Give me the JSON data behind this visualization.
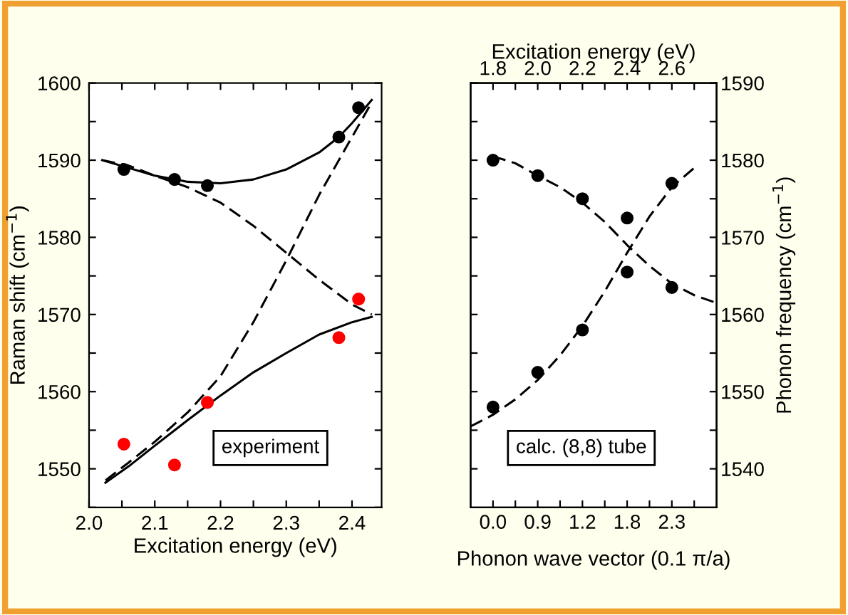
{
  "chart_data": [
    {
      "type": "scatter",
      "xlabel": "Excitation energy (eV)",
      "ylabel": "Raman shift (cm$^{−1}$)",
      "xlim": [
        2.0,
        2.445
      ],
      "ylim": [
        1545,
        1600
      ],
      "xticks": [
        {
          "value": 2.0,
          "label": "2.0"
        },
        {
          "value": 2.05,
          "label": null
        },
        {
          "value": 2.1,
          "label": "2.1"
        },
        {
          "value": 2.15,
          "label": null
        },
        {
          "value": 2.2,
          "label": "2.2"
        },
        {
          "value": 2.25,
          "label": null
        },
        {
          "value": 2.3,
          "label": "2.3"
        },
        {
          "value": 2.35,
          "label": null
        },
        {
          "value": 2.4,
          "label": "2.4"
        }
      ],
      "yticks": [
        {
          "value": 1545,
          "label": null
        },
        1550,
        {
          "value": 1555,
          "label": null
        },
        1560,
        {
          "value": 1565,
          "label": null
        },
        1570,
        {
          "value": 1575,
          "label": null
        },
        1580,
        {
          "value": 1585,
          "label": null
        },
        1590,
        {
          "value": 1595,
          "label": null
        },
        1600
      ],
      "grid": false,
      "legend": false,
      "annotations": [
        "experiment"
      ],
      "series": [
        {
          "color": "#000000",
          "marker": "circle",
          "x": [
            2.053,
            2.13,
            2.18,
            2.38,
            2.41
          ],
          "values": [
            1588.8,
            1587.5,
            1586.7,
            1593,
            1596.8
          ]
        },
        {
          "color": "#ff0000",
          "marker": "circle",
          "x": [
            2.053,
            2.13,
            2.18,
            2.38,
            2.41
          ],
          "values": [
            1553.2,
            1550.5,
            1558.6,
            1567,
            1572
          ]
        },
        {
          "type": "line",
          "color": "#000000",
          "marker": "none",
          "line_style": "solid",
          "x": [
            2.02,
            2.06,
            2.1,
            2.15,
            2.2,
            2.25,
            2.3,
            2.35,
            2.38,
            2.4,
            2.43
          ],
          "values": [
            1590,
            1589,
            1588,
            1587.2,
            1587,
            1587.5,
            1588.8,
            1591,
            1593,
            1594.8,
            1597.8
          ]
        },
        {
          "type": "line",
          "color": "#000000",
          "marker": "none",
          "line_style": "solid",
          "x": [
            2.025,
            2.06,
            2.1,
            2.15,
            2.2,
            2.25,
            2.3,
            2.35,
            2.4,
            2.43
          ],
          "values": [
            1548.2,
            1550.3,
            1553,
            1556.3,
            1559.5,
            1562.5,
            1565,
            1567.4,
            1569,
            1569.7
          ]
        },
        {
          "type": "line",
          "color": "#000000",
          "marker": "none",
          "line_style": "dashed",
          "x": [
            2.02,
            2.06,
            2.1,
            2.15,
            2.2,
            2.25,
            2.3,
            2.35,
            2.4,
            2.43
          ],
          "values": [
            1590,
            1589.3,
            1588,
            1586.5,
            1584.5,
            1581.5,
            1578,
            1574.5,
            1571.3,
            1570
          ]
        },
        {
          "type": "line",
          "color": "#000000",
          "marker": "none",
          "line_style": "dashed",
          "x": [
            2.025,
            2.06,
            2.1,
            2.15,
            2.2,
            2.25,
            2.3,
            2.35,
            2.4,
            2.43
          ],
          "values": [
            1548.5,
            1550.8,
            1553.5,
            1557.3,
            1562,
            1569,
            1577,
            1585.5,
            1593,
            1597.5
          ]
        }
      ]
    },
    {
      "type": "scatter",
      "xlabel": "Phonon wave vector (0.1 π/a)",
      "x2label": "Excitation energy (eV)",
      "ylabel": "Phonon frequency (cm$^{−1}$)",
      "categories": [
        "0.0",
        "0.9",
        "1.2",
        "1.8",
        "2.3"
      ],
      "x2lim": [
        1.7,
        2.8
      ],
      "x2ticks": [
        {
          "value": 1.8,
          "label": "1.8"
        },
        {
          "value": 1.9,
          "label": null
        },
        {
          "value": 2.0,
          "label": "2.0"
        },
        {
          "value": 2.1,
          "label": null
        },
        {
          "value": 2.2,
          "label": "2.2"
        },
        {
          "value": 2.3,
          "label": null
        },
        {
          "value": 2.4,
          "label": "2.4"
        },
        {
          "value": 2.5,
          "label": null
        },
        {
          "value": 2.6,
          "label": "2.6"
        },
        {
          "value": 2.7,
          "label": null
        }
      ],
      "ylim": [
        1535,
        1590
      ],
      "yticks": [
        1540,
        {
          "value": 1545,
          "label": null
        },
        1550,
        {
          "value": 1555,
          "label": null
        },
        1560,
        {
          "value": 1565,
          "label": null
        },
        1570,
        {
          "value": 1575,
          "label": null
        },
        1580,
        {
          "value": 1585,
          "label": null
        },
        1590
      ],
      "grid": false,
      "legend": false,
      "annotations": [
        "calc. (8,8) tube"
      ],
      "series": [
        {
          "color": "#000000",
          "marker": "circle",
          "values": [
            1580,
            1578,
            1575,
            1572.5,
            1563.5
          ]
        },
        {
          "color": "#000000",
          "marker": "circle",
          "values": [
            1548,
            1552.5,
            1558,
            1565.5,
            1577
          ]
        },
        {
          "type": "line",
          "color": "#000000",
          "marker": "none",
          "axis": "x2",
          "line_style": "dashed",
          "x": [
            1.8,
            1.9,
            2.0,
            2.1,
            2.2,
            2.3,
            2.4,
            2.5,
            2.6,
            2.7,
            2.8
          ],
          "values": [
            1580.5,
            1579.6,
            1578,
            1576.5,
            1574.5,
            1572,
            1569,
            1566.3,
            1564,
            1562.5,
            1561.5
          ]
        },
        {
          "type": "line",
          "color": "#000000",
          "marker": "none",
          "axis": "x2",
          "line_style": "dashed",
          "x": [
            1.7,
            1.8,
            1.9,
            2.0,
            2.1,
            2.2,
            2.3,
            2.4,
            2.5,
            2.6,
            2.7
          ],
          "values": [
            1545.5,
            1547,
            1549,
            1551.5,
            1554.7,
            1558.5,
            1563,
            1568,
            1572.7,
            1576.5,
            1579
          ]
        }
      ]
    }
  ]
}
